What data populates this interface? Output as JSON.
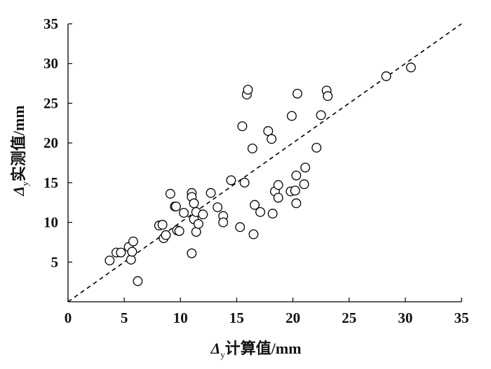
{
  "chart_data": {
    "type": "scatter",
    "title": "",
    "xlabel": {
      "symbol": "Δ",
      "sub": "y",
      "text": "计算值/mm"
    },
    "ylabel": {
      "symbol": "Δ",
      "sub": "y",
      "text": "实测值/mm"
    },
    "xlim": [
      0,
      35
    ],
    "ylim": [
      0,
      35
    ],
    "xticks": [
      0,
      5,
      10,
      15,
      20,
      25,
      30,
      35
    ],
    "yticks": [
      5,
      10,
      15,
      20,
      25,
      30,
      35
    ],
    "grid": false,
    "reference_line": {
      "style": "dashed",
      "from": [
        0,
        0
      ],
      "to": [
        35,
        35
      ]
    },
    "series": [
      {
        "marker": "hollow-circle",
        "color": "#000000",
        "points": [
          [
            3.7,
            5.2
          ],
          [
            4.3,
            6.2
          ],
          [
            4.7,
            6.2
          ],
          [
            5.4,
            6.9
          ],
          [
            5.6,
            5.3
          ],
          [
            5.7,
            6.3
          ],
          [
            5.8,
            7.6
          ],
          [
            6.2,
            2.6
          ],
          [
            8.1,
            9.6
          ],
          [
            8.4,
            9.7
          ],
          [
            8.5,
            8.0
          ],
          [
            8.7,
            8.4
          ],
          [
            9.1,
            13.6
          ],
          [
            9.5,
            12.0
          ],
          [
            9.6,
            12.0
          ],
          [
            9.7,
            9.0
          ],
          [
            9.9,
            8.9
          ],
          [
            10.3,
            11.2
          ],
          [
            11.0,
            13.7
          ],
          [
            11.0,
            13.2
          ],
          [
            11.0,
            6.1
          ],
          [
            11.2,
            12.4
          ],
          [
            11.2,
            10.4
          ],
          [
            11.4,
            8.8
          ],
          [
            11.4,
            11.3
          ],
          [
            11.6,
            9.8
          ],
          [
            12.0,
            11.0
          ],
          [
            12.7,
            13.7
          ],
          [
            13.3,
            11.9
          ],
          [
            13.8,
            10.8
          ],
          [
            13.8,
            10.0
          ],
          [
            14.5,
            15.3
          ],
          [
            15.3,
            9.4
          ],
          [
            15.5,
            22.1
          ],
          [
            15.7,
            15.0
          ],
          [
            15.9,
            26.1
          ],
          [
            16.0,
            26.7
          ],
          [
            16.4,
            19.3
          ],
          [
            16.5,
            8.5
          ],
          [
            16.6,
            12.2
          ],
          [
            17.1,
            11.3
          ],
          [
            17.8,
            21.5
          ],
          [
            18.1,
            20.5
          ],
          [
            18.2,
            11.1
          ],
          [
            18.4,
            13.9
          ],
          [
            18.7,
            13.1
          ],
          [
            18.7,
            14.7
          ],
          [
            19.8,
            13.9
          ],
          [
            19.9,
            23.4
          ],
          [
            20.2,
            14.0
          ],
          [
            20.3,
            12.4
          ],
          [
            20.3,
            15.9
          ],
          [
            20.4,
            26.2
          ],
          [
            21.0,
            14.8
          ],
          [
            21.1,
            16.9
          ],
          [
            22.1,
            19.4
          ],
          [
            22.5,
            23.5
          ],
          [
            23.0,
            26.6
          ],
          [
            23.1,
            25.9
          ],
          [
            28.3,
            28.4
          ],
          [
            30.5,
            29.5
          ]
        ]
      }
    ]
  }
}
